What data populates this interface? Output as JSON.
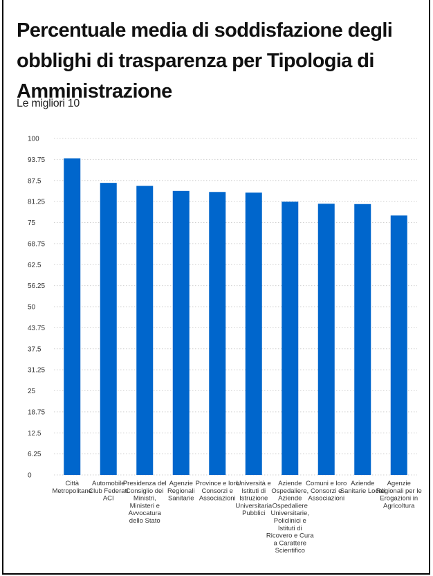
{
  "title": "Percentuale media di soddisfazione degli obblighi di trasparenza per Tipologia di Amministrazione",
  "subtitle": "Le migliori 10",
  "chart_data": {
    "type": "bar",
    "title": "Percentuale media di soddisfazione degli obblighi di trasparenza per Tipologia di Amministrazione",
    "subtitle": "Le migliori 10",
    "xlabel": "",
    "ylabel": "",
    "ylim": [
      0,
      100
    ],
    "yticks": [
      "0",
      "6.25",
      "12.5",
      "18.75",
      "25",
      "31.25",
      "37.5",
      "43.75",
      "50",
      "56.25",
      "62.5",
      "68.75",
      "75",
      "81.25",
      "87.5",
      "93.75",
      "100"
    ],
    "grid": true,
    "bar_color": "#0066cc",
    "categories": [
      [
        "Città",
        "Metropolitane"
      ],
      [
        "Automobile",
        "Club Federati",
        "ACI"
      ],
      [
        "Presidenza del",
        "Consiglio dei",
        "Ministri,",
        "Ministeri e",
        "Avvocatura",
        "dello Stato"
      ],
      [
        "Agenzie",
        "Regionali",
        "Sanitarie"
      ],
      [
        "Province e loro",
        "Consorzi e",
        "Associazioni"
      ],
      [
        "Università e",
        "Istituti di",
        "Istruzione",
        "Universitaria",
        "Pubblici"
      ],
      [
        "Aziende",
        "Ospedaliere,",
        "Aziende",
        "Ospedaliere",
        "Universitarie,",
        "Policlinici e",
        "Istituti di",
        "Ricovero e Cura",
        "a Carattere",
        "Scientifico"
      ],
      [
        "Comuni e loro",
        "Consorzi e",
        "Associazioni"
      ],
      [
        "Aziende",
        "Sanitarie Locali"
      ],
      [
        "Agenzie",
        "Regionali per le",
        "Erogazioni in",
        "Agricoltura"
      ]
    ],
    "values": [
      94.1,
      86.8,
      85.9,
      84.4,
      84.1,
      83.9,
      81.2,
      80.6,
      80.5,
      77.1
    ]
  }
}
